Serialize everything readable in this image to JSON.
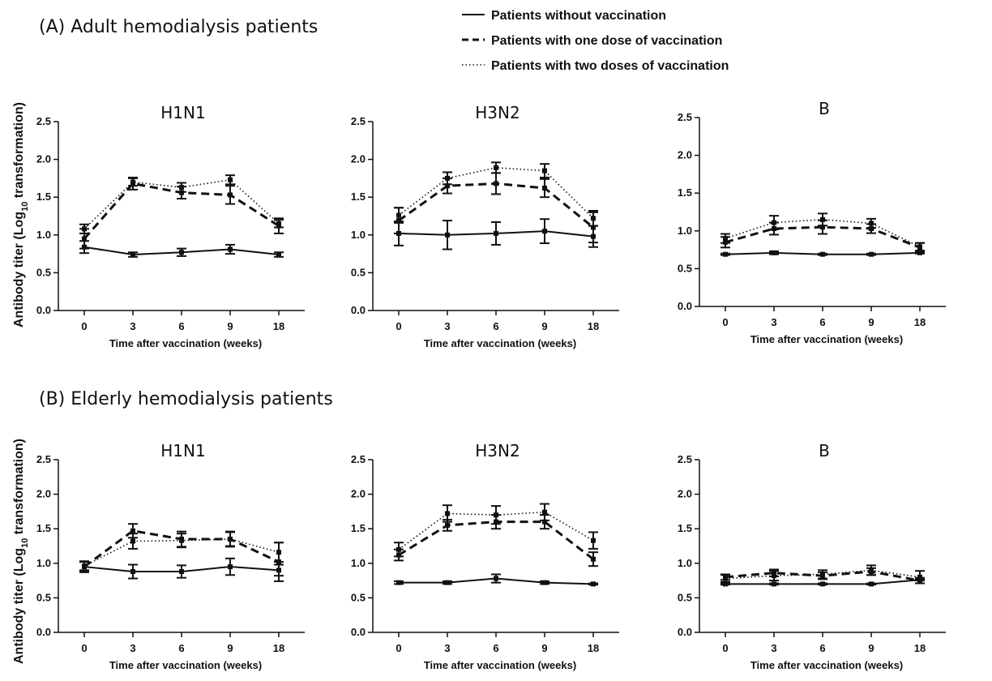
{
  "figure": {
    "section_a_title": "(A) Adult hemodialysis patients",
    "section_b_title": "(B) Elderly hemodialysis patients",
    "ylabel_main": "Antibody titer (Log",
    "ylabel_sub": "10",
    "ylabel_end": " transformation)",
    "legend": [
      {
        "label": "Patients without vaccination",
        "style": "solid"
      },
      {
        "label": "Patients with one dose of vaccination",
        "style": "dashed"
      },
      {
        "label": "Patients with two doses of vaccination",
        "style": "dotted"
      }
    ]
  },
  "chart_data": [
    {
      "type": "line",
      "group": "A",
      "title": "H1N1",
      "xlabel": "Time after vaccination (weeks)",
      "categories": [
        "0",
        "3",
        "6",
        "9",
        "18"
      ],
      "ylim": [
        0,
        2.5
      ],
      "yticks": [
        "0.0",
        "0.5",
        "1.0",
        "1.5",
        "2.0",
        "2.5"
      ],
      "series": [
        {
          "style": "solid",
          "values": [
            0.84,
            0.74,
            0.77,
            0.81,
            0.74
          ],
          "errors": [
            0.08,
            0.03,
            0.05,
            0.06,
            0.03
          ]
        },
        {
          "style": "dashed",
          "values": [
            0.95,
            1.68,
            1.56,
            1.53,
            1.12
          ],
          "errors": [
            0.13,
            0.08,
            0.08,
            0.12,
            0.1
          ]
        },
        {
          "style": "dotted",
          "values": [
            1.08,
            1.7,
            1.63,
            1.73,
            1.15
          ],
          "errors": [
            0.06,
            0.05,
            0.06,
            0.06,
            0.05
          ]
        }
      ]
    },
    {
      "type": "line",
      "group": "A",
      "title": "H3N2",
      "xlabel": "Time after vaccination (weeks)",
      "categories": [
        "0",
        "3",
        "6",
        "9",
        "18"
      ],
      "ylim": [
        0,
        2.5
      ],
      "yticks": [
        "0.0",
        "0.5",
        "1.0",
        "1.5",
        "2.0",
        "2.5"
      ],
      "series": [
        {
          "style": "solid",
          "values": [
            1.02,
            1.0,
            1.02,
            1.05,
            0.98
          ],
          "errors": [
            0.16,
            0.19,
            0.15,
            0.16,
            0.14
          ]
        },
        {
          "style": "dashed",
          "values": [
            1.19,
            1.65,
            1.68,
            1.62,
            1.1
          ],
          "errors": [
            0.17,
            0.1,
            0.14,
            0.12,
            0.2
          ]
        },
        {
          "style": "dotted",
          "values": [
            1.26,
            1.75,
            1.89,
            1.85,
            1.22
          ],
          "errors": [
            0.1,
            0.08,
            0.07,
            0.09,
            0.1
          ]
        }
      ]
    },
    {
      "type": "line",
      "group": "A",
      "title": "B",
      "xlabel": "Time after vaccination (weeks)",
      "categories": [
        "0",
        "3",
        "6",
        "9",
        "18"
      ],
      "ylim": [
        0,
        2.5
      ],
      "yticks": [
        "0.0",
        "0.5",
        "1.0",
        "1.5",
        "2.0",
        "2.5"
      ],
      "series": [
        {
          "style": "solid",
          "values": [
            0.69,
            0.71,
            0.69,
            0.69,
            0.71
          ],
          "errors": [
            0.01,
            0.02,
            0.01,
            0.01,
            0.01
          ]
        },
        {
          "style": "dashed",
          "values": [
            0.85,
            1.03,
            1.05,
            1.03,
            0.78
          ],
          "errors": [
            0.07,
            0.08,
            0.09,
            0.06,
            0.06
          ]
        },
        {
          "style": "dotted",
          "values": [
            0.9,
            1.11,
            1.15,
            1.1,
            0.79
          ],
          "errors": [
            0.06,
            0.09,
            0.08,
            0.06,
            0.05
          ]
        }
      ]
    },
    {
      "type": "line",
      "group": "B",
      "title": "H1N1",
      "xlabel": "Time after vaccination (weeks)",
      "categories": [
        "0",
        "3",
        "6",
        "9",
        "18"
      ],
      "ylim": [
        0,
        2.5
      ],
      "yticks": [
        "0.0",
        "0.5",
        "1.0",
        "1.5",
        "2.0",
        "2.5"
      ],
      "series": [
        {
          "style": "solid",
          "values": [
            0.95,
            0.88,
            0.88,
            0.95,
            0.9
          ],
          "errors": [
            0.07,
            0.1,
            0.09,
            0.12,
            0.08
          ]
        },
        {
          "style": "dashed",
          "values": [
            0.95,
            1.47,
            1.35,
            1.35,
            1.02
          ],
          "errors": [
            0.08,
            0.1,
            0.11,
            0.11,
            0.28
          ]
        },
        {
          "style": "dotted",
          "values": [
            0.96,
            1.32,
            1.33,
            1.35,
            1.16
          ],
          "errors": [
            0.06,
            0.11,
            0.1,
            0.1,
            0.14
          ]
        }
      ]
    },
    {
      "type": "line",
      "group": "B",
      "title": "H3N2",
      "xlabel": "Time after vaccination (weeks)",
      "categories": [
        "0",
        "3",
        "6",
        "9",
        "18"
      ],
      "ylim": [
        0,
        2.5
      ],
      "yticks": [
        "0.0",
        "0.5",
        "1.0",
        "1.5",
        "2.0",
        "2.5"
      ],
      "series": [
        {
          "style": "solid",
          "values": [
            0.72,
            0.72,
            0.78,
            0.72,
            0.7
          ],
          "errors": [
            0.02,
            0.02,
            0.06,
            0.02,
            0.01
          ]
        },
        {
          "style": "dashed",
          "values": [
            1.12,
            1.55,
            1.6,
            1.6,
            1.06
          ],
          "errors": [
            0.08,
            0.08,
            0.1,
            0.1,
            0.1
          ]
        },
        {
          "style": "dotted",
          "values": [
            1.2,
            1.72,
            1.7,
            1.74,
            1.33
          ],
          "errors": [
            0.1,
            0.12,
            0.13,
            0.12,
            0.12
          ]
        }
      ]
    },
    {
      "type": "line",
      "group": "B",
      "title": "B",
      "xlabel": "Time after vaccination (weeks)",
      "categories": [
        "0",
        "3",
        "6",
        "9",
        "18"
      ],
      "ylim": [
        0,
        2.5
      ],
      "yticks": [
        "0.0",
        "0.5",
        "1.0",
        "1.5",
        "2.0",
        "2.5"
      ],
      "series": [
        {
          "style": "solid",
          "values": [
            0.7,
            0.7,
            0.7,
            0.7,
            0.76
          ],
          "errors": [
            0.01,
            0.01,
            0.01,
            0.01,
            0.01
          ]
        },
        {
          "style": "dashed",
          "values": [
            0.8,
            0.86,
            0.82,
            0.88,
            0.75
          ],
          "errors": [
            0.04,
            0.05,
            0.05,
            0.05,
            0.04
          ]
        },
        {
          "style": "dotted",
          "values": [
            0.78,
            0.82,
            0.84,
            0.9,
            0.8
          ],
          "errors": [
            0.05,
            0.07,
            0.06,
            0.07,
            0.09
          ]
        }
      ]
    }
  ]
}
